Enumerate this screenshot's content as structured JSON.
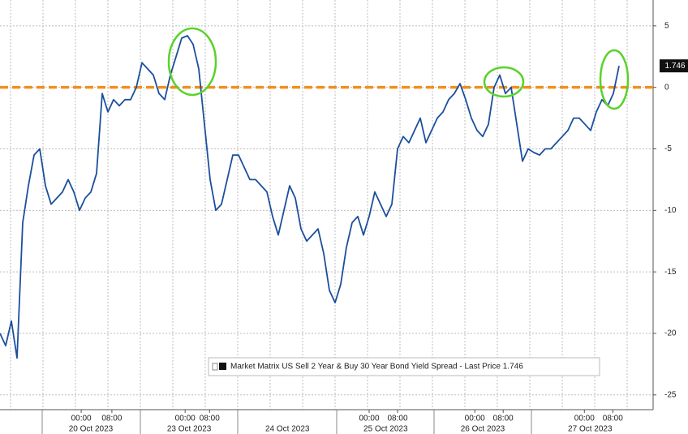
{
  "chart_data": {
    "type": "line",
    "series": [
      {
        "name": "Market Matrix US Sell 2 Year & Buy 30 Year Bond Yield Spread - Last Price 1.746",
        "color": "#1c4f9c",
        "values": [
          -20,
          -21,
          -19,
          -22,
          -11,
          -8,
          -5.5,
          -5,
          -8,
          -9.5,
          -9,
          -8.5,
          -7.5,
          -8.5,
          -10,
          -9,
          -8.5,
          -7,
          -0.5,
          -2,
          -1,
          -1.5,
          -1,
          -1,
          0,
          2,
          1.5,
          1,
          -0.5,
          -1,
          1,
          2.5,
          4,
          4.2,
          3.5,
          1.5,
          -3,
          -7.5,
          -10,
          -9.5,
          -7.5,
          -5.5,
          -5.5,
          -6.5,
          -7.5,
          -7.5,
          -8,
          -8.5,
          -10.5,
          -12,
          -10,
          -8,
          -9,
          -11.5,
          -12.5,
          -12,
          -11.5,
          -13.5,
          -16.5,
          -17.5,
          -16,
          -13,
          -11,
          -10.5,
          -12,
          -10.5,
          -8.5,
          -9.5,
          -10.5,
          -9.5,
          -5,
          -4,
          -4.5,
          -3.5,
          -2.5,
          -4.5,
          -3.5,
          -2.5,
          -2,
          -1,
          -0.5,
          0.3,
          -1,
          -2.5,
          -3.5,
          -4,
          -3,
          0,
          1,
          -0.5,
          0,
          -3,
          -6,
          -5,
          -5.3,
          -5.5,
          -5,
          -5,
          -4.5,
          -4,
          -3.5,
          -2.5,
          -2.5,
          -3,
          -3.5,
          -2,
          -1,
          -1.5,
          -0.5,
          1.746
        ]
      }
    ],
    "xlim": [
      0,
      115
    ],
    "xticks": [
      {
        "value": 14.3,
        "label": "00:00"
      },
      {
        "value": 19.7,
        "label": "08:00"
      },
      {
        "value": 32.6,
        "label": "00:00"
      },
      {
        "value": 36.9,
        "label": "08:00"
      },
      {
        "value": 65,
        "label": "00:00"
      },
      {
        "value": 70,
        "label": "08:00"
      },
      {
        "value": 83.6,
        "label": "00:00"
      },
      {
        "value": 88.6,
        "label": "08:00"
      },
      {
        "value": 102.9,
        "label": "00:00"
      },
      {
        "value": 107.9,
        "label": "08:00"
      }
    ],
    "date_ticks": [
      {
        "value": 16,
        "label": "20 Oct 2023"
      },
      {
        "value": 33.3,
        "label": "23 Oct 2023"
      },
      {
        "value": 50.6,
        "label": "24 Oct 2023"
      },
      {
        "value": 67.9,
        "label": "25 Oct 2023"
      },
      {
        "value": 85,
        "label": "26 Oct 2023"
      },
      {
        "value": 103.9,
        "label": "27 Oct 2023"
      }
    ],
    "ylim": [
      -26.2,
      7.1
    ],
    "yticks": [
      5,
      0,
      -5,
      -10,
      -15,
      -20,
      -25
    ],
    "grid": true,
    "reference_line": {
      "value": 0,
      "color": "#f0901e"
    }
  }
}
